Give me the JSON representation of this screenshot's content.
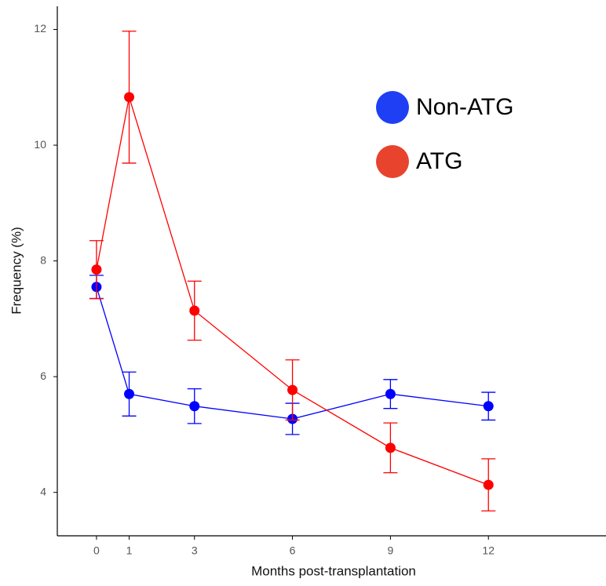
{
  "chart_data": {
    "type": "line",
    "x_label": "Months post-transplantation",
    "y_label": "Frequency (%)",
    "x": [
      0,
      1,
      3,
      6,
      9,
      12
    ],
    "xlim": [
      -1.2,
      15.6
    ],
    "xticks": [
      0,
      1,
      3,
      6,
      9,
      12
    ],
    "ylim": [
      3.25,
      12.4
    ],
    "yticks": [
      4,
      6,
      8,
      10,
      12
    ],
    "series": [
      {
        "name": "Non-ATG",
        "color": "#0000ff",
        "legend_color": "#1f3ff5",
        "values": [
          7.55,
          5.7,
          5.49,
          5.27,
          5.7,
          5.49
        ],
        "errors": [
          0.2,
          0.38,
          0.3,
          0.27,
          0.25,
          0.24
        ]
      },
      {
        "name": "ATG",
        "color": "#ff0000",
        "legend_color": "#e8432d",
        "values": [
          7.85,
          10.83,
          7.14,
          5.77,
          4.77,
          4.13
        ],
        "errors": [
          0.5,
          1.14,
          0.51,
          0.52,
          0.43,
          0.45
        ]
      }
    ]
  }
}
